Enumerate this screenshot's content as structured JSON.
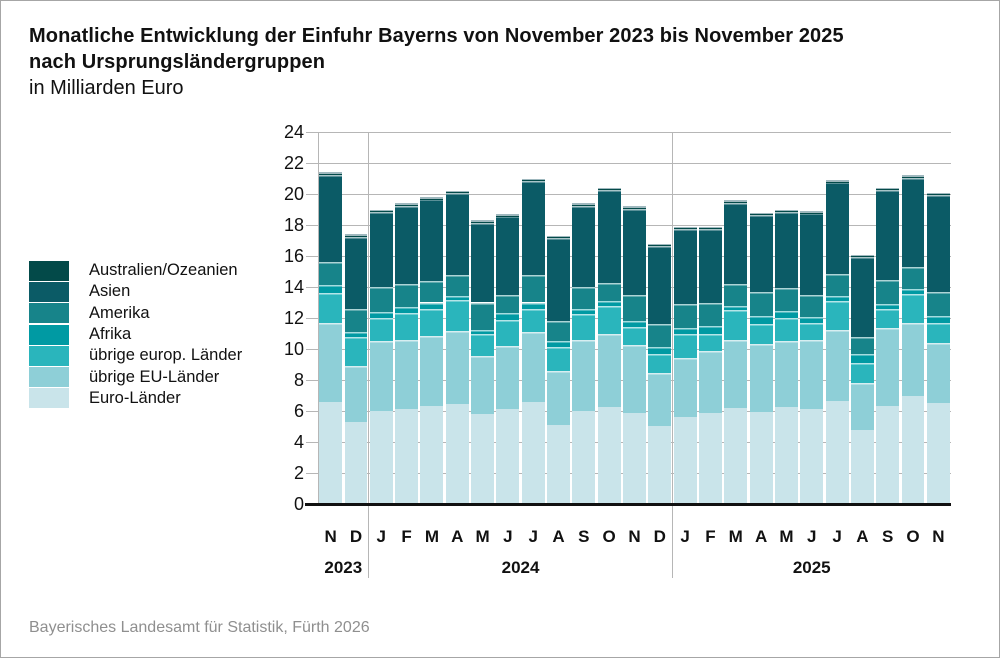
{
  "page": {
    "title_line1": "Monatliche Entwicklung der Einfuhr Bayerns von November 2023 bis November 2025",
    "title_line2": "nach Ursprungsländergruppen",
    "subtitle": "in Milliarden Euro",
    "source": "Bayerisches Landesamt für Statistik, Fürth 2026"
  },
  "chart_data": {
    "type": "bar",
    "stacked": true,
    "title": "Monatliche Entwicklung der Einfuhr Bayerns von November 2023 bis November 2025 nach Ursprungsländergruppen",
    "unit_label": "in Milliarden Euro",
    "ylim": [
      0,
      24
    ],
    "ytick_step": 2,
    "grid": true,
    "legend_position": "left",
    "categories": [
      "N",
      "D",
      "J",
      "F",
      "M",
      "A",
      "M",
      "J",
      "J",
      "A",
      "S",
      "O",
      "N",
      "D",
      "J",
      "F",
      "M",
      "A",
      "M",
      "J",
      "J",
      "A",
      "S",
      "O",
      "N"
    ],
    "year_groups": [
      {
        "label": "2023",
        "start": 0,
        "count": 2
      },
      {
        "label": "2024",
        "start": 2,
        "count": 12
      },
      {
        "label": "2025",
        "start": 14,
        "count": 11
      }
    ],
    "series": [
      {
        "name": "Euro-Länder",
        "color": "#c9e4ea",
        "values": [
          6.6,
          5.3,
          6.0,
          6.1,
          6.35,
          6.45,
          5.8,
          6.1,
          6.55,
          5.1,
          6.0,
          6.25,
          5.85,
          5.05,
          5.6,
          5.9,
          6.2,
          5.95,
          6.25,
          6.15,
          6.65,
          4.75,
          6.35,
          6.95,
          6.5
        ]
      },
      {
        "name": "übrige EU-Länder",
        "color": "#8ecfd7",
        "values": [
          5.1,
          3.6,
          4.5,
          4.5,
          4.5,
          4.7,
          3.75,
          4.1,
          4.55,
          3.5,
          4.6,
          4.7,
          4.4,
          3.4,
          3.8,
          3.95,
          4.4,
          4.4,
          4.25,
          4.4,
          4.6,
          3.05,
          5.0,
          4.75,
          3.9
        ]
      },
      {
        "name": "übrige europ. Länder",
        "color": "#2ab5bc",
        "values": [
          1.9,
          1.9,
          1.5,
          1.7,
          1.7,
          2.0,
          1.4,
          1.7,
          1.45,
          1.5,
          1.65,
          1.85,
          1.15,
          1.2,
          1.55,
          1.15,
          1.9,
          1.25,
          1.5,
          1.1,
          1.85,
          1.3,
          1.2,
          1.85,
          1.3
        ]
      },
      {
        "name": "Afrika",
        "color": "#009aa3",
        "values": [
          0.5,
          0.3,
          0.4,
          0.4,
          0.45,
          0.25,
          0.3,
          0.45,
          0.45,
          0.4,
          0.3,
          0.3,
          0.4,
          0.45,
          0.4,
          0.5,
          0.3,
          0.5,
          0.45,
          0.4,
          0.3,
          0.55,
          0.35,
          0.3,
          0.4
        ]
      },
      {
        "name": "Amerika",
        "color": "#17848a",
        "values": [
          1.5,
          1.5,
          1.6,
          1.5,
          1.4,
          1.4,
          1.75,
          1.15,
          1.8,
          1.3,
          1.45,
          1.15,
          1.7,
          1.5,
          1.55,
          1.45,
          1.4,
          1.55,
          1.5,
          1.45,
          1.45,
          1.1,
          1.55,
          1.45,
          1.6
        ]
      },
      {
        "name": "Asien",
        "color": "#0b5b66",
        "values": [
          5.65,
          4.65,
          4.85,
          5.05,
          5.25,
          5.25,
          5.15,
          5.05,
          6.05,
          5.35,
          5.25,
          6.0,
          5.55,
          5.05,
          4.85,
          4.8,
          5.25,
          5.0,
          4.9,
          5.25,
          5.9,
          5.2,
          5.8,
          5.75,
          6.25
        ]
      },
      {
        "name": "Australien/Ozeanien",
        "color": "#034a49",
        "values": [
          0.05,
          0.05,
          0.05,
          0.05,
          0.05,
          0.05,
          0.05,
          0.05,
          0.05,
          0.05,
          0.05,
          0.05,
          0.05,
          0.05,
          0.05,
          0.05,
          0.05,
          0.05,
          0.05,
          0.05,
          0.05,
          0.05,
          0.05,
          0.05,
          0.05
        ]
      }
    ],
    "legend_top_to_bottom": [
      "Australien/Ozeanien",
      "Asien",
      "Amerika",
      "Afrika",
      "übrige europ. Länder",
      "übrige EU-Länder",
      "Euro-Länder"
    ],
    "monthly_totals": [
      21.3,
      17.3,
      18.9,
      19.3,
      19.7,
      20.1,
      18.2,
      18.6,
      20.9,
      17.2,
      19.3,
      20.3,
      19.1,
      16.7,
      17.8,
      17.8,
      19.5,
      18.7,
      18.9,
      18.8,
      20.8,
      16.0,
      20.3,
      21.1,
      20.0
    ]
  }
}
